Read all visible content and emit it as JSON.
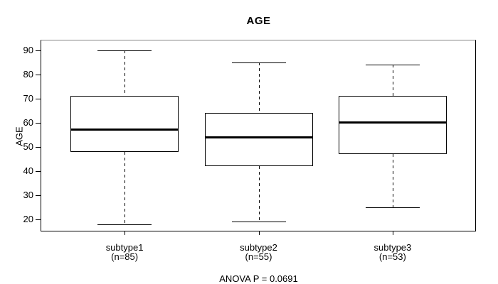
{
  "figure": {
    "title": "AGE",
    "annotation": "ANOVA P = 0.0691"
  },
  "chart_data": {
    "type": "boxplot",
    "title": "AGE",
    "xlabel": "",
    "ylabel": "AGE",
    "ylim": [
      15,
      94
    ],
    "yticks": [
      20,
      30,
      40,
      50,
      60,
      70,
      80,
      90
    ],
    "grid": false,
    "legend": false,
    "annotation": "ANOVA P = 0.0691",
    "groups": [
      {
        "label": "subtype1",
        "sublabel": "(n=85)",
        "n": 85,
        "whisker_low": 18,
        "q1": 48,
        "median": 57,
        "q3": 71,
        "whisker_high": 90
      },
      {
        "label": "subtype2",
        "sublabel": "(n=55)",
        "n": 55,
        "whisker_low": 19,
        "q1": 42,
        "median": 54,
        "q3": 64,
        "whisker_high": 85
      },
      {
        "label": "subtype3",
        "sublabel": "(n=53)",
        "n": 53,
        "whisker_low": 25,
        "q1": 47,
        "median": 60,
        "q3": 71,
        "whisker_high": 84
      }
    ],
    "colors": {
      "stroke": "#000000",
      "frame_top": "#858585",
      "background": "#ffffff"
    }
  }
}
